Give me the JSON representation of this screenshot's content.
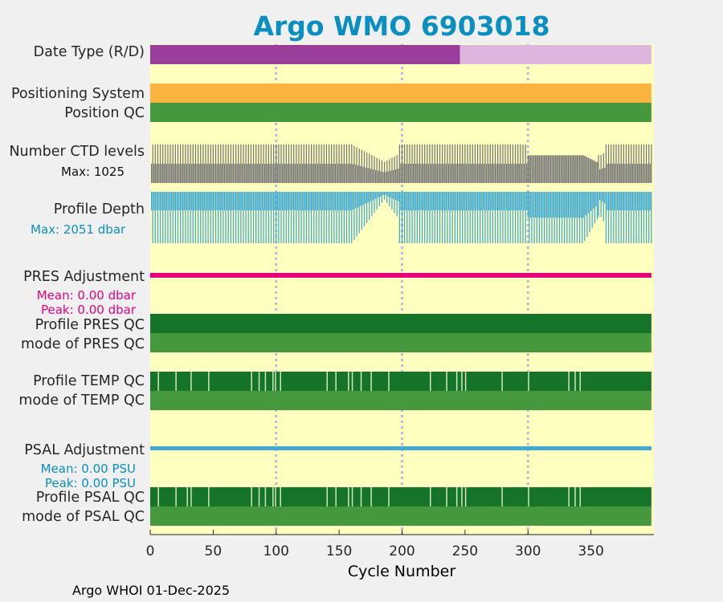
{
  "page": {
    "title": "Argo WMO 6903018",
    "xlabel": "Cycle Number",
    "footer": "Argo WHOI 01-Dec-2025"
  },
  "chart_data": {
    "type": "bar",
    "title": "Argo WMO 6903018",
    "xlabel": "Cycle Number",
    "xlim": [
      0,
      400
    ],
    "xticks": [
      0,
      50,
      100,
      150,
      200,
      250,
      300,
      350
    ],
    "grid_x": [
      100,
      200,
      300
    ],
    "max_cycle": 398,
    "colors": {
      "background": "#ffffc0",
      "title": "#0a8fc0",
      "delayed_mode": "#9b3d9b",
      "realtime_mode": "#dcb6dc",
      "positioning": "#fcb440",
      "qc_good": "#46983f",
      "qc_profile_a": "#15742a",
      "ctd": "#777777",
      "depth": "#40aad2",
      "pres_adj": "#e6007e",
      "psal_adj": "#40aad2",
      "grid": "#b9b9d9"
    },
    "rows": [
      {
        "label": "Date Type (R/D)",
        "segments": [
          {
            "from": 0,
            "to": 246,
            "value": "D"
          },
          {
            "from": 246,
            "to": 398,
            "value": "R"
          }
        ]
      },
      {
        "label": "Positioning System"
      },
      {
        "label": "Position QC"
      },
      {
        "label": "Number CTD levels",
        "note": "Max: 1025",
        "max": 1025
      },
      {
        "label": "Profile Depth",
        "note": "Max: 2051 dbar",
        "max": 2051
      },
      {
        "label": "PRES Adjustment",
        "mean": "Mean: 0.00 dbar",
        "peak": "Peak: 0.00 dbar",
        "value": 0.0
      },
      {
        "label": "Profile PRES QC"
      },
      {
        "label": "mode of PRES QC"
      },
      {
        "label": "Profile TEMP QC",
        "flagged_cycles": [
          6,
          20,
          32,
          46,
          80,
          86,
          91,
          97,
          99,
          103,
          140,
          147,
          157,
          160,
          167,
          175,
          189,
          222,
          235,
          243,
          247,
          250,
          279,
          300,
          332,
          337,
          341
        ]
      },
      {
        "label": "mode of TEMP QC"
      },
      {
        "label": "PSAL Adjustment",
        "mean": "Mean: 0.00 PSU",
        "peak": "Peak: 0.00 PSU",
        "value": 0.0
      },
      {
        "label": "Profile PSAL QC",
        "flagged_cycles": [
          6,
          20,
          29,
          32,
          46,
          80,
          86,
          91,
          97,
          99,
          103,
          140,
          147,
          157,
          160,
          167,
          175,
          189,
          222,
          235,
          243,
          247,
          250,
          279,
          300,
          332,
          337,
          341
        ]
      },
      {
        "label": "mode of PSAL QC"
      }
    ]
  }
}
